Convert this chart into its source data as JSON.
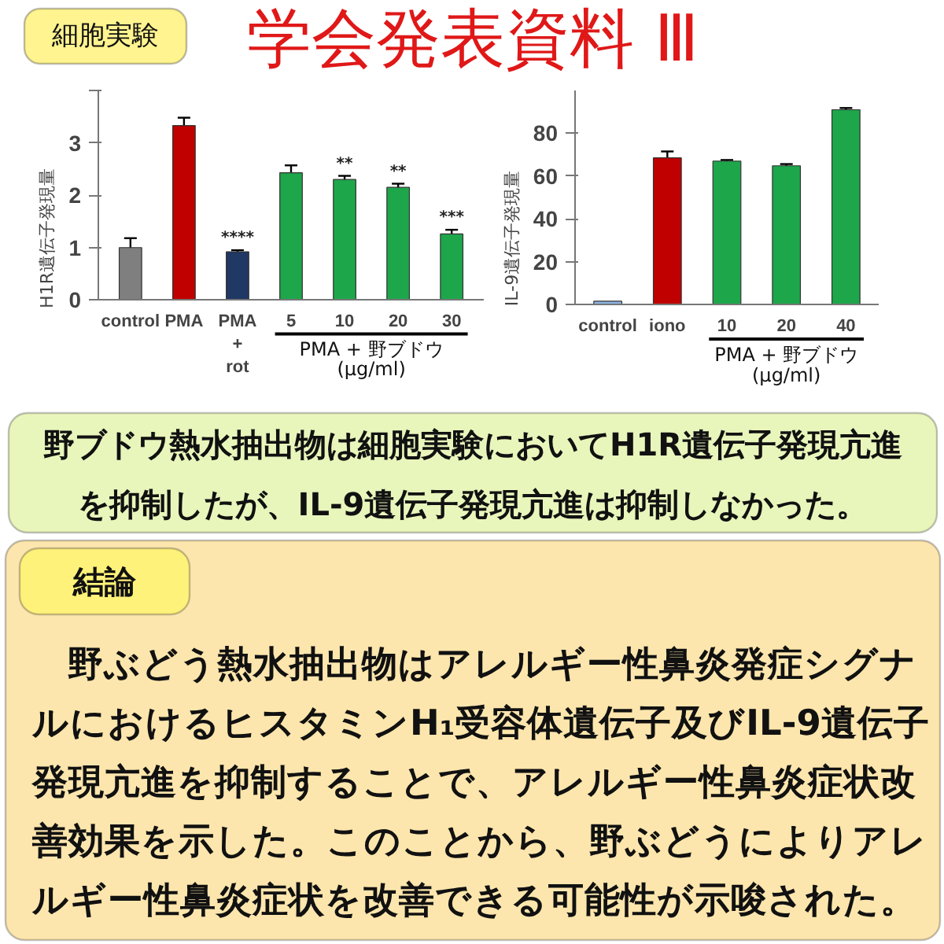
{
  "chart_data": [
    {
      "type": "other",
      "title": "学会発表資料 Ⅲ",
      "annotations": [
        "細胞実験"
      ]
    },
    {
      "type": "bar",
      "ylabel": "H1R遺伝子発現量",
      "categories": [
        "control",
        "PMA",
        "PMA\n+\nrot",
        "5",
        "10",
        "20",
        "30"
      ],
      "values": [
        1.0,
        3.33,
        0.92,
        2.43,
        2.3,
        2.15,
        1.26
      ],
      "errors": [
        0.18,
        0.15,
        0.03,
        0.14,
        0.07,
        0.07,
        0.08
      ],
      "colors": [
        "#7f7f7f",
        "#c00000",
        "#1f3864",
        "#1ea64b",
        "#1ea64b",
        "#1ea64b",
        "#1ea64b"
      ],
      "value_labels": [
        null,
        null,
        "****",
        null,
        "**",
        "**",
        "***"
      ],
      "ylim": [
        0,
        4
      ],
      "yticks": [
        0,
        1,
        2,
        3,
        {
          "value": 4,
          "label": null
        }
      ],
      "annotations": [
        "PMA + 野ブドウ\n(μg/ml)"
      ]
    },
    {
      "type": "bar",
      "ylabel": "IL-9遺伝子発現量",
      "categories": [
        "control",
        "iono",
        "10",
        "20",
        "40"
      ],
      "values": [
        1.5,
        68.5,
        67,
        64.8,
        91
      ],
      "errors": [
        null,
        3,
        0.5,
        0.8,
        0.8
      ],
      "colors": [
        "#8db4e2",
        "#c00000",
        "#1ea64b",
        "#1ea64b",
        "#1ea64b"
      ],
      "ylim": [
        0,
        100
      ],
      "yticks": [
        0,
        20,
        40,
        60,
        80
      ],
      "annotations": [
        "PMA + 野ブドウ\n(μg/ml)"
      ]
    },
    {
      "type": "other",
      "annotations": [
        "野ブドウ熱水抽出物は細胞実験においてH1R遺伝子発現亢進を抑制したが、IL-9遺伝子発現亢進は抑制しなかった。",
        "結論",
        "野ぶどう熱水抽出物はアレルギー性鼻炎発症シグナルにおけるヒスタミンH₁受容体遺伝子及びIL-9遺伝子発現亢進を抑制することで、アレルギー性鼻炎症状改善効果を示した。このことから、野ぶどうによりアレルギー性鼻炎症状を改善できる可能性が示唆された。"
      ]
    }
  ]
}
